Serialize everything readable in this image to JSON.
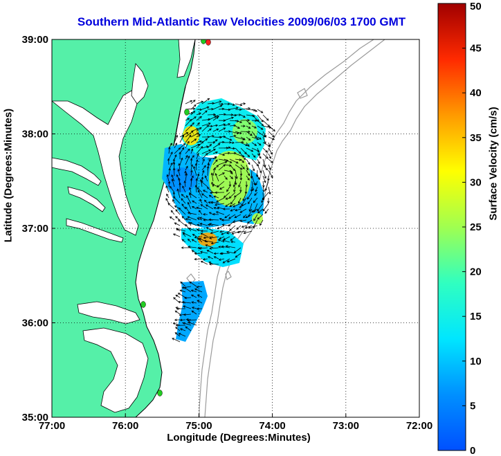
{
  "title": "Southern Mid-Atlantic Raw Velocities 2009/06/03 1700 GMT",
  "x_axis": {
    "label": "Longitude (Degrees:Minutes)",
    "ticks": [
      "77:00",
      "76:00",
      "75:00",
      "74:00",
      "73:00",
      "72:00"
    ],
    "range": [
      -77,
      -72
    ]
  },
  "y_axis": {
    "label": "Latitude (Degrees:Minutes)",
    "ticks": [
      "35:00",
      "36:00",
      "37:00",
      "38:00",
      "39:00"
    ],
    "range": [
      35,
      39
    ]
  },
  "colorbar": {
    "label": "Surface Velocity (cm/s)",
    "ticks": [
      "0",
      "5",
      "10",
      "15",
      "20",
      "25",
      "30",
      "35",
      "40",
      "45",
      "50"
    ],
    "range": [
      0,
      50
    ],
    "colormap": "jet"
  },
  "colors": {
    "land": "#55f0a8",
    "water": "#ffffff",
    "coastline": "#000000",
    "bathymetry": "#9a9a9a",
    "title": "#0000dd",
    "station_marker": "#22cc22",
    "station_marker_alt": "#ff2020"
  },
  "grid": true,
  "map_features": [
    "land-mass",
    "chesapeake-bay",
    "delmarva-coast",
    "outer-banks",
    "bathymetry-contours",
    "shore-stations",
    "velocity-field",
    "velocity-vectors"
  ]
}
